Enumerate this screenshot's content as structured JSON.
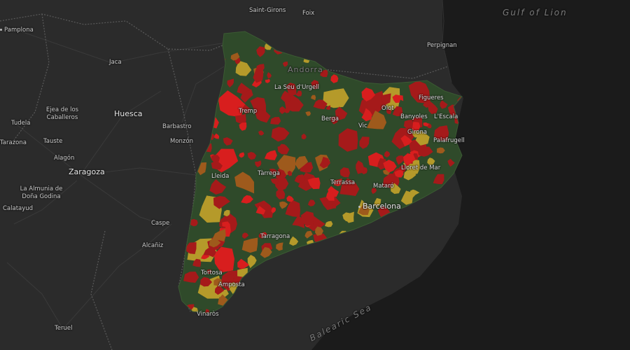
{
  "map": {
    "colors": {
      "land": "#2b2b2b",
      "sea": "#1b1b1b",
      "border": "#5a5a5a",
      "road": "#3a3a3a",
      "region_green": "#2f4a2a",
      "region_red": "#a51a1a",
      "region_bright_red": "#d81e1e",
      "region_orange": "#9e5a1c",
      "region_yellow": "#b59a2a"
    },
    "places": {
      "pamplona": "Pamplona",
      "saint_girons": "Saint-Girons",
      "foix": "Foix",
      "perpignan": "Perpignan",
      "gulf_of_lion": "Gulf of Lion",
      "jaca": "Jaca",
      "andorra": "Andorra",
      "la_seu_durgell": "La Seu d'Urgell",
      "ejea": "Ejea de los Caballeros",
      "huesca": "Huesca",
      "tremp": "Tremp",
      "figueres": "Figueres",
      "tudela": "Tudela",
      "barbastro": "Barbastro",
      "berga": "Berga",
      "olot": "Olot",
      "banyoles": "Banyoles",
      "lescala": "L'Escala",
      "tarazona": "Tarazona",
      "tauste": "Tauste",
      "monzon": "Monzón",
      "vic": "Vic",
      "girona": "Girona",
      "palafrugell": "Palafrugell",
      "alagon": "Alagón",
      "zaragoza": "Zaragoza",
      "lleida": "Lleida",
      "tarrega": "Tàrrega",
      "lloret": "Lloret de Mar",
      "terrassa": "Terrassa",
      "mataro": "Mataró",
      "la_almunia": "La Almunia de Doña Godina",
      "barcelona": "Barcelona",
      "calatayud": "Calatayud",
      "caspe": "Caspe",
      "tarragona": "Tarragona",
      "alcaniz": "Alcañiz",
      "tortosa": "Tortosa",
      "amposta": "Amposta",
      "vinaros": "Vinaròs",
      "teruel": "Teruel",
      "balearic_sea": "Balearic Sea"
    }
  }
}
